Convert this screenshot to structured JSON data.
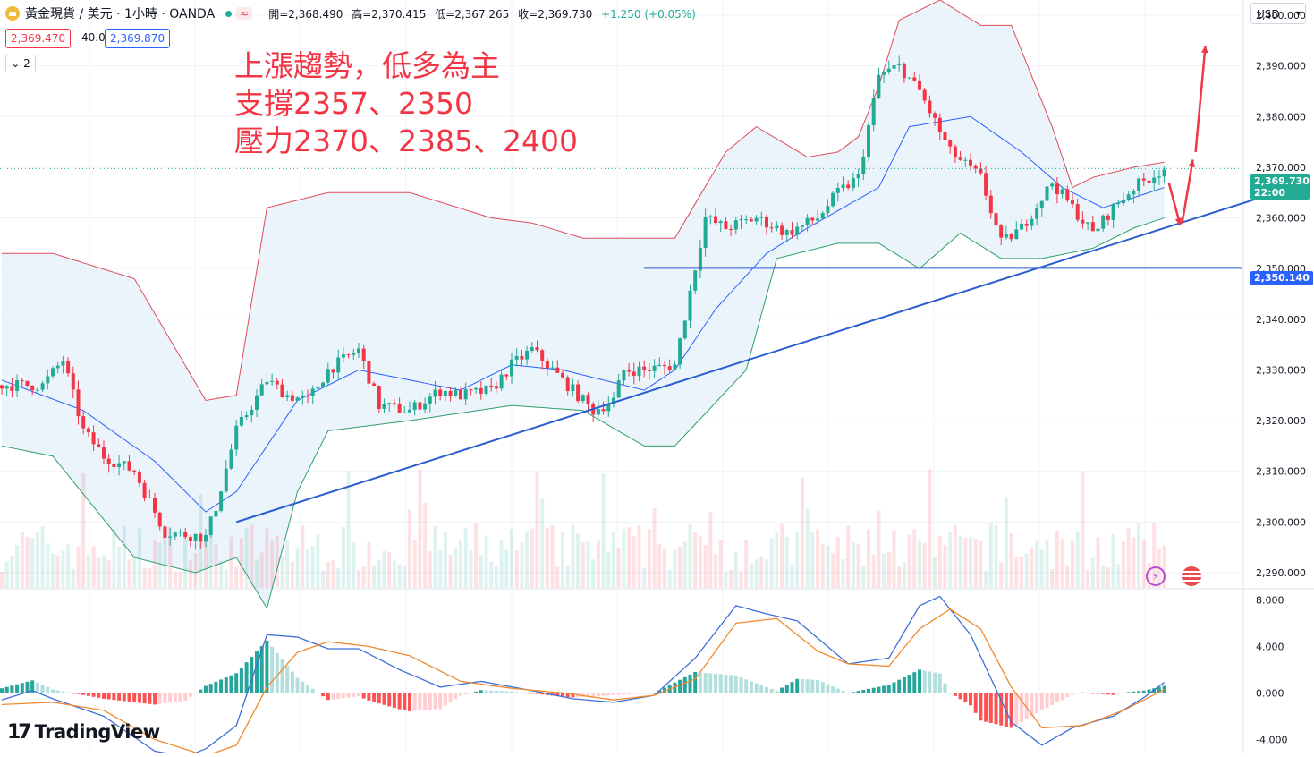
{
  "header": {
    "symbol": "黃金現貨 / 美元 · 1小時 · OANDA",
    "badge": "≈",
    "open": "開=2,368.490",
    "high": "高=2,370.415",
    "low": "低=2,367.265",
    "close": "收=2,369.730",
    "change": "+1.250 (+0.05%)"
  },
  "quote": {
    "sell": "2,369.470",
    "spread": "40.0",
    "buy": "2,369.870"
  },
  "indicator_count": "2",
  "currency": "USD",
  "annotation": [
    "上漲趨勢，低多為主",
    "支撐2357、2350",
    "壓力2370、2385、2400"
  ],
  "price_tag": {
    "value": "2,369.730",
    "time": "22:00"
  },
  "level_tag": "2,350.140",
  "logo": "TradingView",
  "icons": [
    "gold-coin-icon",
    "lightning-icon",
    "us-flag-icon",
    "chevron-down-icon"
  ],
  "colors": {
    "up": "#22ab94",
    "down": "#f23645",
    "upper_band": "#e04b5b",
    "middle_band": "#2962ff",
    "lower_band": "#2e9e6b",
    "band_fill": "#e3eefa",
    "trendline": "#2c5fcf",
    "annotation": "#f23645",
    "macd": "#3c6fd8",
    "signal": "#ef8a2f"
  },
  "chart_data": [
    {
      "type": "candlestick",
      "title": "黃金現貨 / 美元 · 1小時 · OANDA",
      "ylim": [
        2287,
        2403
      ],
      "y_ticks": [
        "2,400.000",
        "2,390.000",
        "2,380.000",
        "2,370.000",
        "2,360.000",
        "2,350.000",
        "2,340.000",
        "2,330.000",
        "2,320.000",
        "2,310.000",
        "2,300.000",
        "2,290.000"
      ],
      "y_tick_values": [
        2400,
        2390,
        2380,
        2370,
        2360,
        2350,
        2340,
        2330,
        2320,
        2310,
        2300,
        2290
      ],
      "series": [
        {
          "name": "close",
          "anchors": [
            [
              0,
              2327
            ],
            [
              8,
              2327
            ],
            [
              12,
              2332
            ],
            [
              16,
              2318
            ],
            [
              20,
              2313
            ],
            [
              26,
              2310
            ],
            [
              32,
              2298
            ],
            [
              40,
              2297
            ],
            [
              42,
              2303
            ],
            [
              46,
              2318
            ],
            [
              52,
              2328
            ],
            [
              56,
              2325
            ],
            [
              60,
              2324
            ],
            [
              64,
              2330
            ],
            [
              70,
              2334
            ],
            [
              74,
              2323
            ],
            [
              80,
              2322
            ],
            [
              86,
              2326
            ],
            [
              90,
              2325
            ],
            [
              96,
              2326
            ],
            [
              100,
              2331
            ],
            [
              104,
              2334
            ],
            [
              110,
              2328
            ],
            [
              116,
              2322
            ],
            [
              120,
              2324
            ],
            [
              122,
              2330
            ],
            [
              126,
              2330
            ],
            [
              132,
              2331
            ],
            [
              138,
              2360
            ],
            [
              142,
              2358
            ],
            [
              148,
              2360
            ],
            [
              154,
              2357
            ],
            [
              160,
              2360
            ],
            [
              164,
              2365
            ],
            [
              168,
              2368
            ],
            [
              172,
              2388
            ],
            [
              176,
              2390
            ],
            [
              180,
              2385
            ],
            [
              186,
              2373
            ],
            [
              192,
              2368
            ],
            [
              196,
              2355
            ],
            [
              200,
              2358
            ],
            [
              206,
              2367
            ],
            [
              210,
              2362
            ],
            [
              214,
              2357
            ],
            [
              218,
              2362
            ],
            [
              222,
              2366
            ],
            [
              228,
              2369.73
            ]
          ]
        }
      ],
      "bollinger": {
        "upper": [
          [
            0,
            2353
          ],
          [
            10,
            2353
          ],
          [
            26,
            2348
          ],
          [
            40,
            2324
          ],
          [
            46,
            2325
          ],
          [
            52,
            2362
          ],
          [
            64,
            2365
          ],
          [
            80,
            2365
          ],
          [
            96,
            2360
          ],
          [
            104,
            2359
          ],
          [
            114,
            2356
          ],
          [
            132,
            2356
          ],
          [
            142,
            2373
          ],
          [
            148,
            2378
          ],
          [
            158,
            2372
          ],
          [
            164,
            2373
          ],
          [
            168,
            2376
          ],
          [
            172,
            2386
          ],
          [
            176,
            2399
          ],
          [
            184,
            2403
          ],
          [
            192,
            2398
          ],
          [
            198,
            2398
          ],
          [
            206,
            2378
          ],
          [
            210,
            2366
          ],
          [
            214,
            2368
          ],
          [
            222,
            2370
          ],
          [
            228,
            2371
          ]
        ],
        "middle": [
          [
            0,
            2328
          ],
          [
            16,
            2322
          ],
          [
            30,
            2312
          ],
          [
            40,
            2302
          ],
          [
            46,
            2306
          ],
          [
            58,
            2324
          ],
          [
            70,
            2330
          ],
          [
            90,
            2326
          ],
          [
            100,
            2331
          ],
          [
            110,
            2330
          ],
          [
            126,
            2326
          ],
          [
            132,
            2330
          ],
          [
            140,
            2342
          ],
          [
            150,
            2353
          ],
          [
            158,
            2358
          ],
          [
            172,
            2366
          ],
          [
            178,
            2378
          ],
          [
            190,
            2380
          ],
          [
            200,
            2373
          ],
          [
            208,
            2366
          ],
          [
            216,
            2362
          ],
          [
            222,
            2364
          ],
          [
            228,
            2366
          ]
        ],
        "lower": [
          [
            0,
            2315
          ],
          [
            10,
            2313
          ],
          [
            26,
            2293
          ],
          [
            38,
            2290
          ],
          [
            46,
            2293
          ],
          [
            52,
            2283
          ],
          [
            58,
            2306
          ],
          [
            64,
            2318
          ],
          [
            80,
            2320
          ],
          [
            100,
            2323
          ],
          [
            114,
            2322
          ],
          [
            126,
            2315
          ],
          [
            132,
            2315
          ],
          [
            146,
            2330
          ],
          [
            152,
            2352
          ],
          [
            164,
            2355
          ],
          [
            172,
            2355
          ],
          [
            180,
            2350
          ],
          [
            188,
            2357
          ],
          [
            196,
            2352
          ],
          [
            204,
            2352
          ],
          [
            214,
            2354
          ],
          [
            222,
            2358
          ],
          [
            228,
            2360
          ]
        ]
      },
      "annotations_lines": {
        "horizontal_level": 2350.14,
        "trendline": [
          [
            46,
            2300
          ],
          [
            250,
            2365
          ]
        ]
      }
    },
    {
      "type": "macd",
      "ylim": [
        -5.2,
        8.8
      ],
      "y_ticks": [
        "8.000",
        "4.000",
        "0.000",
        "-4.000"
      ],
      "y_tick_values": [
        8,
        4,
        0,
        -4
      ],
      "series": [
        {
          "name": "macd",
          "anchors": [
            [
              0,
              -0.6
            ],
            [
              6,
              0.2
            ],
            [
              10,
              -0.5
            ],
            [
              20,
              -2.0
            ],
            [
              30,
              -5.0
            ],
            [
              36,
              -5.5
            ],
            [
              40,
              -4.8
            ],
            [
              46,
              -2.8
            ],
            [
              52,
              5.0
            ],
            [
              58,
              4.8
            ],
            [
              64,
              3.8
            ],
            [
              70,
              3.8
            ],
            [
              78,
              2.0
            ],
            [
              86,
              0.5
            ],
            [
              94,
              1.0
            ],
            [
              104,
              0.2
            ],
            [
              112,
              -0.5
            ],
            [
              120,
              -0.8
            ],
            [
              128,
              -0.2
            ],
            [
              136,
              3.0
            ],
            [
              144,
              7.5
            ],
            [
              150,
              6.8
            ],
            [
              156,
              6.2
            ],
            [
              166,
              2.5
            ],
            [
              174,
              3.0
            ],
            [
              180,
              7.5
            ],
            [
              184,
              8.3
            ],
            [
              190,
              5.0
            ],
            [
              198,
              -2.5
            ],
            [
              204,
              -4.5
            ],
            [
              210,
              -3.0
            ],
            [
              218,
              -2.0
            ],
            [
              224,
              -0.4
            ],
            [
              228,
              0.9
            ]
          ]
        },
        {
          "name": "signal",
          "anchors": [
            [
              0,
              -1.0
            ],
            [
              10,
              -0.8
            ],
            [
              20,
              -1.5
            ],
            [
              30,
              -4.0
            ],
            [
              40,
              -5.4
            ],
            [
              46,
              -4.5
            ],
            [
              52,
              0.5
            ],
            [
              58,
              3.5
            ],
            [
              64,
              4.4
            ],
            [
              72,
              4.0
            ],
            [
              80,
              3.2
            ],
            [
              90,
              1.0
            ],
            [
              100,
              0.4
            ],
            [
              110,
              0.0
            ],
            [
              120,
              -0.6
            ],
            [
              128,
              -0.2
            ],
            [
              136,
              1.2
            ],
            [
              144,
              6.0
            ],
            [
              152,
              6.4
            ],
            [
              160,
              3.6
            ],
            [
              166,
              2.5
            ],
            [
              174,
              2.3
            ],
            [
              180,
              5.5
            ],
            [
              186,
              7.2
            ],
            [
              192,
              5.5
            ],
            [
              198,
              0.5
            ],
            [
              204,
              -3.0
            ],
            [
              212,
              -2.8
            ],
            [
              220,
              -1.5
            ],
            [
              228,
              0.3
            ]
          ]
        }
      ]
    }
  ]
}
